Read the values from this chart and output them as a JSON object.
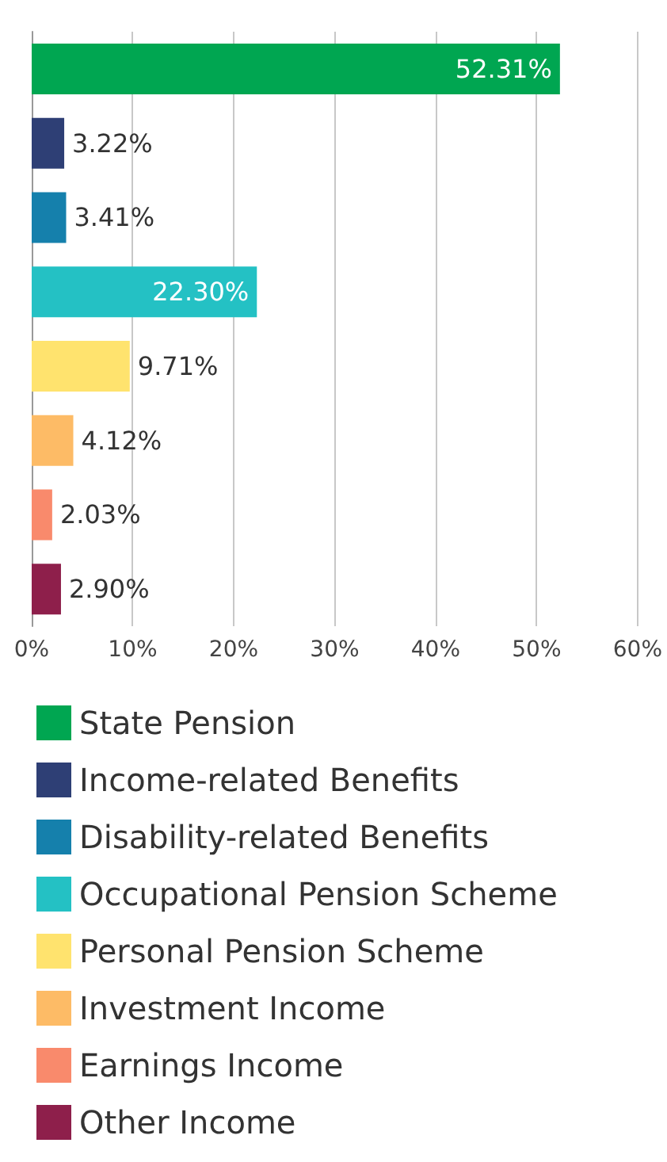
{
  "chart_data": {
    "type": "bar",
    "orientation": "horizontal",
    "stacked": true,
    "categories": [
      null,
      null,
      null,
      null,
      null,
      null,
      null,
      null
    ],
    "series": [
      {
        "name": "State Pension",
        "color": "#00a651",
        "values": [
          52.31,
          null,
          null,
          null,
          null,
          null,
          null,
          null
        ],
        "value_labels": [
          "52.31%",
          null,
          null,
          null,
          null,
          null,
          null,
          null
        ]
      },
      {
        "name": "Income-related Benefits",
        "color": "#2e3f75",
        "values": [
          null,
          3.22,
          null,
          null,
          null,
          null,
          null,
          null
        ],
        "value_labels": [
          null,
          "3.22%",
          null,
          null,
          null,
          null,
          null,
          null
        ]
      },
      {
        "name": "Disability-related Benefits",
        "color": "#1580ac",
        "values": [
          null,
          null,
          3.41,
          null,
          null,
          null,
          null,
          null
        ],
        "value_labels": [
          null,
          null,
          "3.41%",
          null,
          null,
          null,
          null,
          null
        ]
      },
      {
        "name": "Occupational Pension Scheme",
        "color": "#24c1c4",
        "values": [
          null,
          null,
          null,
          22.3,
          null,
          null,
          null,
          null
        ],
        "value_labels": [
          null,
          null,
          null,
          "22.30%",
          null,
          null,
          null,
          null
        ]
      },
      {
        "name": "Personal Pension Scheme",
        "color": "#ffe36e",
        "values": [
          null,
          null,
          null,
          null,
          9.71,
          null,
          null,
          null
        ],
        "value_labels": [
          null,
          null,
          null,
          null,
          "9.71%",
          null,
          null,
          null
        ]
      },
      {
        "name": "Investment Income",
        "color": "#fdbb66",
        "values": [
          null,
          null,
          null,
          null,
          null,
          4.12,
          null,
          null
        ],
        "value_labels": [
          null,
          null,
          null,
          null,
          null,
          "4.12%",
          null,
          null
        ]
      },
      {
        "name": "Earnings Income",
        "color": "#f98a6c",
        "values": [
          null,
          null,
          null,
          null,
          null,
          null,
          2.03,
          null
        ],
        "value_labels": [
          null,
          null,
          null,
          null,
          null,
          null,
          "2.03%",
          null
        ]
      },
      {
        "name": "Other Income",
        "color": "#8e1f4b",
        "values": [
          null,
          null,
          null,
          null,
          null,
          null,
          null,
          2.9
        ],
        "value_labels": [
          null,
          null,
          null,
          null,
          null,
          null,
          null,
          "2.90%"
        ]
      }
    ],
    "xlim": [
      0,
      60
    ],
    "xticks": [
      {
        "value": 0,
        "label": "0%"
      },
      {
        "value": 10,
        "label": "10%"
      },
      {
        "value": 20,
        "label": "20%"
      },
      {
        "value": 30,
        "label": "30%"
      },
      {
        "value": 40,
        "label": "40%"
      },
      {
        "value": 50,
        "label": "50%"
      },
      {
        "value": 60,
        "label": "60%"
      }
    ],
    "grid": "x",
    "legend": "bottom left"
  }
}
